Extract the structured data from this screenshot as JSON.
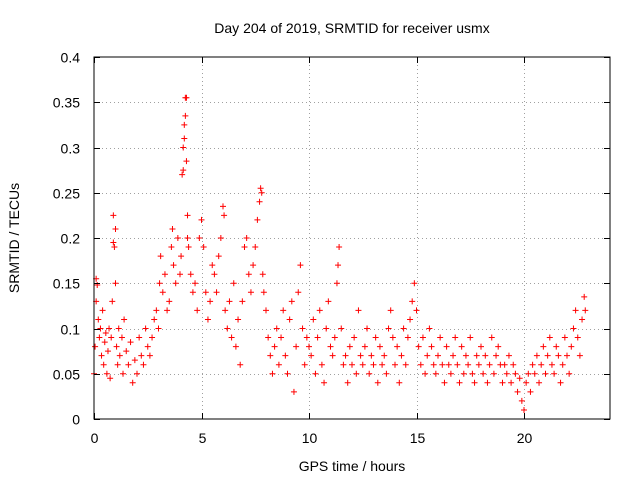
{
  "chart_data": {
    "type": "scatter",
    "title": "Day 204 of 2019, SRMTID for receiver usmx",
    "xlabel": "GPS time / hours",
    "ylabel": "SRMTID / TECUs",
    "xlim": [
      0,
      24
    ],
    "ylim": [
      0,
      0.4
    ],
    "xticks": [
      0,
      5,
      10,
      15,
      20
    ],
    "xtick_labels": [
      "0",
      "5",
      "10",
      "15",
      "20"
    ],
    "yticks": [
      0,
      0.05,
      0.1,
      0.15,
      0.2,
      0.25,
      0.3,
      0.35,
      0.4
    ],
    "ytick_labels": [
      "0",
      "0.05",
      "0.1",
      "0.15",
      "0.2",
      "0.25",
      "0.3",
      "0.35",
      "0.4"
    ],
    "grid": true,
    "marker": "+",
    "series": [
      {
        "name": "SRMTID",
        "color": "#ff0000",
        "points": [
          [
            0.0,
            0.05
          ],
          [
            0.05,
            0.08
          ],
          [
            0.1,
            0.13
          ],
          [
            0.1,
            0.155
          ],
          [
            0.15,
            0.148
          ],
          [
            0.2,
            0.11
          ],
          [
            0.25,
            0.09
          ],
          [
            0.3,
            0.1
          ],
          [
            0.35,
            0.07
          ],
          [
            0.4,
            0.12
          ],
          [
            0.45,
            0.06
          ],
          [
            0.5,
            0.085
          ],
          [
            0.55,
            0.095
          ],
          [
            0.6,
            0.05
          ],
          [
            0.65,
            0.075
          ],
          [
            0.7,
            0.1
          ],
          [
            0.75,
            0.045
          ],
          [
            0.8,
            0.09
          ],
          [
            0.85,
            0.13
          ],
          [
            0.9,
            0.195
          ],
          [
            0.9,
            0.225
          ],
          [
            0.95,
            0.19
          ],
          [
            1.0,
            0.21
          ],
          [
            1.0,
            0.15
          ],
          [
            1.05,
            0.08
          ],
          [
            1.1,
            0.06
          ],
          [
            1.15,
            0.1
          ],
          [
            1.2,
            0.07
          ],
          [
            1.3,
            0.09
          ],
          [
            1.35,
            0.05
          ],
          [
            1.4,
            0.11
          ],
          [
            1.5,
            0.075
          ],
          [
            1.6,
            0.06
          ],
          [
            1.7,
            0.085
          ],
          [
            1.8,
            0.04
          ],
          [
            1.9,
            0.065
          ],
          [
            2.0,
            0.05
          ],
          [
            2.1,
            0.09
          ],
          [
            2.2,
            0.07
          ],
          [
            2.3,
            0.06
          ],
          [
            2.4,
            0.1
          ],
          [
            2.5,
            0.08
          ],
          [
            2.6,
            0.07
          ],
          [
            2.7,
            0.09
          ],
          [
            2.8,
            0.11
          ],
          [
            2.9,
            0.12
          ],
          [
            3.0,
            0.1
          ],
          [
            3.05,
            0.15
          ],
          [
            3.1,
            0.18
          ],
          [
            3.2,
            0.14
          ],
          [
            3.3,
            0.16
          ],
          [
            3.4,
            0.12
          ],
          [
            3.5,
            0.13
          ],
          [
            3.6,
            0.19
          ],
          [
            3.65,
            0.21
          ],
          [
            3.7,
            0.17
          ],
          [
            3.8,
            0.15
          ],
          [
            3.9,
            0.2
          ],
          [
            4.0,
            0.16
          ],
          [
            4.05,
            0.18
          ],
          [
            4.1,
            0.27
          ],
          [
            4.15,
            0.275
          ],
          [
            4.15,
            0.3
          ],
          [
            4.2,
            0.31
          ],
          [
            4.2,
            0.325
          ],
          [
            4.25,
            0.335
          ],
          [
            4.25,
            0.355
          ],
          [
            4.3,
            0.355
          ],
          [
            4.3,
            0.285
          ],
          [
            4.35,
            0.225
          ],
          [
            4.35,
            0.2
          ],
          [
            4.4,
            0.19
          ],
          [
            4.5,
            0.16
          ],
          [
            4.6,
            0.14
          ],
          [
            4.7,
            0.15
          ],
          [
            4.8,
            0.12
          ],
          [
            4.9,
            0.2
          ],
          [
            5.0,
            0.22
          ],
          [
            5.1,
            0.19
          ],
          [
            5.2,
            0.14
          ],
          [
            5.3,
            0.11
          ],
          [
            5.4,
            0.13
          ],
          [
            5.5,
            0.17
          ],
          [
            5.6,
            0.16
          ],
          [
            5.7,
            0.14
          ],
          [
            5.8,
            0.18
          ],
          [
            5.9,
            0.2
          ],
          [
            6.0,
            0.235
          ],
          [
            6.05,
            0.225
          ],
          [
            6.1,
            0.12
          ],
          [
            6.2,
            0.1
          ],
          [
            6.3,
            0.13
          ],
          [
            6.4,
            0.09
          ],
          [
            6.5,
            0.15
          ],
          [
            6.6,
            0.08
          ],
          [
            6.7,
            0.11
          ],
          [
            6.8,
            0.06
          ],
          [
            6.9,
            0.13
          ],
          [
            7.0,
            0.19
          ],
          [
            7.1,
            0.2
          ],
          [
            7.2,
            0.16
          ],
          [
            7.3,
            0.14
          ],
          [
            7.4,
            0.17
          ],
          [
            7.5,
            0.19
          ],
          [
            7.6,
            0.22
          ],
          [
            7.7,
            0.24
          ],
          [
            7.75,
            0.255
          ],
          [
            7.8,
            0.25
          ],
          [
            7.85,
            0.16
          ],
          [
            7.9,
            0.14
          ],
          [
            8.0,
            0.12
          ],
          [
            8.1,
            0.09
          ],
          [
            8.2,
            0.07
          ],
          [
            8.3,
            0.05
          ],
          [
            8.4,
            0.08
          ],
          [
            8.5,
            0.1
          ],
          [
            8.6,
            0.06
          ],
          [
            8.7,
            0.09
          ],
          [
            8.8,
            0.12
          ],
          [
            8.9,
            0.07
          ],
          [
            9.0,
            0.05
          ],
          [
            9.1,
            0.11
          ],
          [
            9.2,
            0.13
          ],
          [
            9.3,
            0.03
          ],
          [
            9.4,
            0.08
          ],
          [
            9.5,
            0.14
          ],
          [
            9.6,
            0.17
          ],
          [
            9.7,
            0.1
          ],
          [
            9.8,
            0.06
          ],
          [
            9.9,
            0.09
          ],
          [
            10.0,
            0.08
          ],
          [
            10.1,
            0.07
          ],
          [
            10.2,
            0.11
          ],
          [
            10.3,
            0.05
          ],
          [
            10.4,
            0.09
          ],
          [
            10.5,
            0.12
          ],
          [
            10.6,
            0.06
          ],
          [
            10.7,
            0.04
          ],
          [
            10.8,
            0.1
          ],
          [
            10.9,
            0.13
          ],
          [
            11.0,
            0.08
          ],
          [
            11.1,
            0.07
          ],
          [
            11.2,
            0.09
          ],
          [
            11.3,
            0.15
          ],
          [
            11.35,
            0.17
          ],
          [
            11.4,
            0.19
          ],
          [
            11.5,
            0.1
          ],
          [
            11.6,
            0.06
          ],
          [
            11.7,
            0.07
          ],
          [
            11.8,
            0.04
          ],
          [
            11.9,
            0.08
          ],
          [
            12.0,
            0.06
          ],
          [
            12.1,
            0.09
          ],
          [
            12.2,
            0.05
          ],
          [
            12.3,
            0.12
          ],
          [
            12.4,
            0.07
          ],
          [
            12.5,
            0.06
          ],
          [
            12.6,
            0.08
          ],
          [
            12.7,
            0.1
          ],
          [
            12.8,
            0.05
          ],
          [
            12.9,
            0.07
          ],
          [
            13.0,
            0.06
          ],
          [
            13.1,
            0.09
          ],
          [
            13.2,
            0.04
          ],
          [
            13.3,
            0.08
          ],
          [
            13.4,
            0.06
          ],
          [
            13.5,
            0.07
          ],
          [
            13.6,
            0.05
          ],
          [
            13.7,
            0.1
          ],
          [
            13.8,
            0.12
          ],
          [
            13.9,
            0.09
          ],
          [
            14.0,
            0.06
          ],
          [
            14.1,
            0.08
          ],
          [
            14.2,
            0.04
          ],
          [
            14.3,
            0.07
          ],
          [
            14.4,
            0.1
          ],
          [
            14.5,
            0.06
          ],
          [
            14.6,
            0.09
          ],
          [
            14.7,
            0.11
          ],
          [
            14.8,
            0.13
          ],
          [
            14.9,
            0.15
          ],
          [
            15.0,
            0.12
          ],
          [
            15.1,
            0.08
          ],
          [
            15.2,
            0.06
          ],
          [
            15.3,
            0.09
          ],
          [
            15.4,
            0.05
          ],
          [
            15.5,
            0.07
          ],
          [
            15.6,
            0.1
          ],
          [
            15.7,
            0.08
          ],
          [
            15.8,
            0.06
          ],
          [
            15.9,
            0.05
          ],
          [
            16.0,
            0.07
          ],
          [
            16.1,
            0.09
          ],
          [
            16.2,
            0.06
          ],
          [
            16.3,
            0.04
          ],
          [
            16.4,
            0.08
          ],
          [
            16.5,
            0.06
          ],
          [
            16.6,
            0.05
          ],
          [
            16.7,
            0.07
          ],
          [
            16.8,
            0.09
          ],
          [
            16.9,
            0.06
          ],
          [
            17.0,
            0.04
          ],
          [
            17.1,
            0.08
          ],
          [
            17.2,
            0.05
          ],
          [
            17.3,
            0.07
          ],
          [
            17.4,
            0.06
          ],
          [
            17.5,
            0.09
          ],
          [
            17.6,
            0.05
          ],
          [
            17.7,
            0.04
          ],
          [
            17.8,
            0.07
          ],
          [
            17.9,
            0.06
          ],
          [
            18.0,
            0.08
          ],
          [
            18.1,
            0.05
          ],
          [
            18.2,
            0.07
          ],
          [
            18.3,
            0.04
          ],
          [
            18.4,
            0.06
          ],
          [
            18.5,
            0.09
          ],
          [
            18.6,
            0.05
          ],
          [
            18.7,
            0.07
          ],
          [
            18.8,
            0.08
          ],
          [
            18.9,
            0.06
          ],
          [
            19.0,
            0.04
          ],
          [
            19.1,
            0.06
          ],
          [
            19.2,
            0.05
          ],
          [
            19.3,
            0.07
          ],
          [
            19.4,
            0.04
          ],
          [
            19.5,
            0.06
          ],
          [
            19.6,
            0.05
          ],
          [
            19.7,
            0.03
          ],
          [
            19.8,
            0.045
          ],
          [
            19.9,
            0.02
          ],
          [
            20.0,
            0.01
          ],
          [
            20.1,
            0.04
          ],
          [
            20.2,
            0.05
          ],
          [
            20.3,
            0.03
          ],
          [
            20.4,
            0.06
          ],
          [
            20.5,
            0.05
          ],
          [
            20.6,
            0.07
          ],
          [
            20.7,
            0.04
          ],
          [
            20.8,
            0.06
          ],
          [
            20.9,
            0.08
          ],
          [
            21.0,
            0.05
          ],
          [
            21.1,
            0.07
          ],
          [
            21.2,
            0.09
          ],
          [
            21.3,
            0.06
          ],
          [
            21.4,
            0.05
          ],
          [
            21.5,
            0.08
          ],
          [
            21.6,
            0.07
          ],
          [
            21.7,
            0.04
          ],
          [
            21.8,
            0.06
          ],
          [
            21.9,
            0.09
          ],
          [
            22.0,
            0.07
          ],
          [
            22.1,
            0.05
          ],
          [
            22.2,
            0.08
          ],
          [
            22.3,
            0.1
          ],
          [
            22.4,
            0.12
          ],
          [
            22.5,
            0.09
          ],
          [
            22.6,
            0.07
          ],
          [
            22.7,
            0.11
          ],
          [
            22.8,
            0.135
          ],
          [
            22.85,
            0.12
          ]
        ]
      }
    ]
  }
}
